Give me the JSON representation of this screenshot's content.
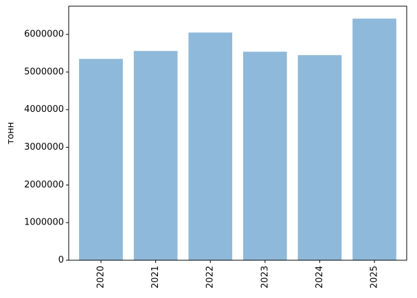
{
  "chart_data": {
    "type": "bar",
    "y_label": "тонн",
    "categories": [
      "2020",
      "2021",
      "2022",
      "2023",
      "2024",
      "2025"
    ],
    "values": [
      5350000,
      5560000,
      6050000,
      5540000,
      5450000,
      6420000
    ],
    "color": "#8fb9da",
    "ylim": [
      0,
      6750000
    ],
    "yticks": [
      0,
      1000000,
      2000000,
      3000000,
      4000000,
      5000000,
      6000000
    ],
    "grid": false
  }
}
